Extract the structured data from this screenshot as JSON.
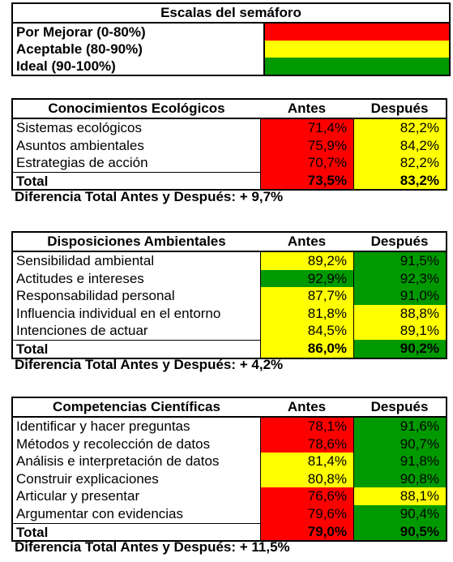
{
  "legend": {
    "title": "Escalas del semáforo",
    "items": [
      {
        "label": "Por Mejorar (0-80%)",
        "color": "#ff0000"
      },
      {
        "label": "Aceptable (80-90%)",
        "color": "#ffff00"
      },
      {
        "label": "Ideal (90-100%)",
        "color": "#009900"
      }
    ]
  },
  "tables": [
    {
      "header": {
        "name": "Conocimientos Ecológicos",
        "before": "Antes",
        "after": "Después"
      },
      "rows": [
        {
          "label": "Sistemas ecológicos",
          "before": "71,4%",
          "before_color": "red",
          "after": "82,2%",
          "after_color": "yellow"
        },
        {
          "label": "Asuntos ambientales",
          "before": "75,9%",
          "before_color": "red",
          "after": "84,2%",
          "after_color": "yellow"
        },
        {
          "label": "Estrategias de acción",
          "before": "70,7%",
          "before_color": "red",
          "after": "82,2%",
          "after_color": "yellow"
        }
      ],
      "total": {
        "label": "Total",
        "before": "73,5%",
        "before_color": "red",
        "after": "83,2%",
        "after_color": "yellow"
      },
      "difference": "Diferencia Total Antes y Después: + 9,7%"
    },
    {
      "header": {
        "name": "Disposiciones Ambientales",
        "before": "Antes",
        "after": "Después"
      },
      "rows": [
        {
          "label": "Sensibilidad ambiental",
          "before": "89,2%",
          "before_color": "yellow",
          "after": "91,5%",
          "after_color": "green"
        },
        {
          "label": "Actitudes e intereses",
          "before": "92,9%",
          "before_color": "green",
          "after": "92,3%",
          "after_color": "green"
        },
        {
          "label": "Responsabilidad personal",
          "before": "87,7%",
          "before_color": "yellow",
          "after": "91,0%",
          "after_color": "green"
        },
        {
          "label": "Influencia individual en el entorno",
          "before": "81,8%",
          "before_color": "yellow",
          "after": "88,8%",
          "after_color": "yellow"
        },
        {
          "label": "Intenciones de actuar",
          "before": "84,5%",
          "before_color": "yellow",
          "after": "89,1%",
          "after_color": "yellow"
        }
      ],
      "total": {
        "label": "Total",
        "before": "86,0%",
        "before_color": "yellow",
        "after": "90,2%",
        "after_color": "green"
      },
      "difference": "Diferencia Total Antes y Después: + 4,2%"
    },
    {
      "header": {
        "name": "Competencias Científicas",
        "before": "Antes",
        "after": "Después"
      },
      "rows": [
        {
          "label": "Identificar y hacer preguntas",
          "before": "78,1%",
          "before_color": "red",
          "after": "91,6%",
          "after_color": "green"
        },
        {
          "label": "Métodos y recolección de datos",
          "before": "78,6%",
          "before_color": "red",
          "after": "90,7%",
          "after_color": "green"
        },
        {
          "label": "Análisis e interpretación de datos",
          "before": "81,4%",
          "before_color": "yellow",
          "after": "91,8%",
          "after_color": "green"
        },
        {
          "label": "Construir explicaciones",
          "before": "80,8%",
          "before_color": "yellow",
          "after": "90,8%",
          "after_color": "green"
        },
        {
          "label": "Articular y presentar",
          "before": "76,6%",
          "before_color": "red",
          "after": "88,1%",
          "after_color": "yellow"
        },
        {
          "label": "Argumentar con evidencias",
          "before": "79,6%",
          "before_color": "red",
          "after": "90,4%",
          "after_color": "green"
        }
      ],
      "total": {
        "label": "Total",
        "before": "79,0%",
        "before_color": "red",
        "after": "90,5%",
        "after_color": "green"
      },
      "difference": "Diferencia Total Antes y Después: + 11,5%"
    }
  ]
}
